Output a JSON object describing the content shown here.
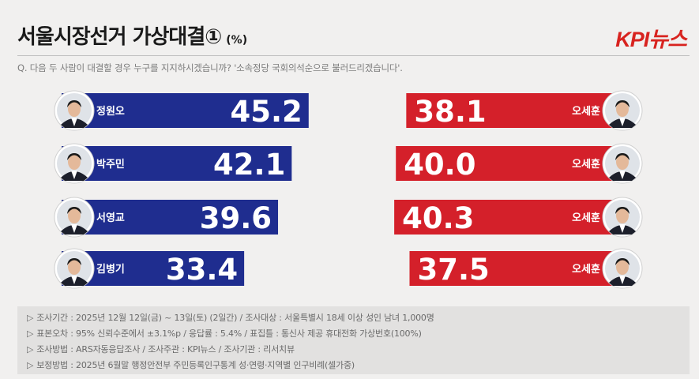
{
  "header": {
    "title": "서울시장선거 가상대결①",
    "unit": "(%)",
    "logo": "KPI뉴스",
    "question": "Q. 다음 두 사람이 대결할 경우 누구를 지지하시겠습니까? '소속정당 국회의석순으로 불러드리겠습니다'."
  },
  "colors": {
    "blue": "#1f2d8f",
    "red": "#d4202a",
    "text_on_bar": "#ffffff"
  },
  "chart_data": {
    "type": "bar",
    "matchups": [
      {
        "left_name": "정원오",
        "left_value": 45.2,
        "right_name": "오세훈",
        "right_value": 38.1
      },
      {
        "left_name": "박주민",
        "left_value": 42.1,
        "right_name": "오세훈",
        "right_value": 40.0
      },
      {
        "left_name": "서영교",
        "left_value": 39.6,
        "right_name": "오세훈",
        "right_value": 40.3
      },
      {
        "left_name": "김병기",
        "left_value": 33.4,
        "right_name": "오세훈",
        "right_value": 37.5
      }
    ],
    "left_series": {
      "color": "#1f2d8f"
    },
    "right_series": {
      "color": "#d4202a"
    }
  },
  "notes": [
    "조사기간 : 2025년 12월 12일(금) ~ 13일(토) (2일간) / 조사대상 : 서울특별시 18세 이상 성인 남녀 1,000명",
    "표본오차 : 95% 신뢰수준에서 ±3.1%p / 응답률 : 5.4% / 표집틀 : 통신사 제공 휴대전화 가상번호(100%)",
    "조사방법 : ARS자동응답조사 / 조사주관 : KPI뉴스 / 조사기관 : 리서치뷰",
    "보정방법 : 2025년 6월말 행정안전부 주민등록인구통계 성·연령·지역별 인구비례(셀가중)"
  ],
  "note_arrow": "▷"
}
